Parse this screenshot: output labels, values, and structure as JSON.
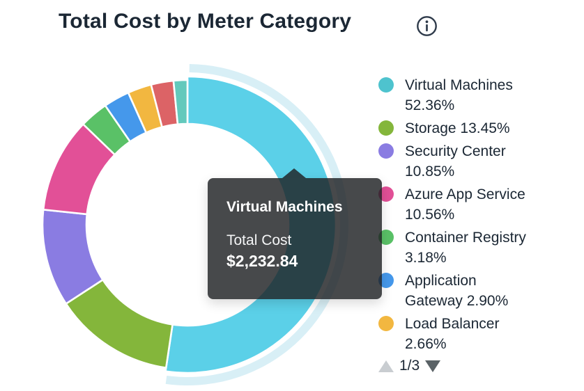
{
  "header": {
    "title": "Total Cost by Meter Category"
  },
  "chart_data": {
    "type": "donut",
    "title": "Total Cost by Meter Category",
    "legend_position": "right",
    "hovered_segment": "Virtual Machines",
    "segment_border_color": "#ffffff",
    "highlight_halo_color": "#d8eff6",
    "segments": [
      {
        "label": "Virtual Machines",
        "pct": 52.36,
        "pct_label": "52.36%",
        "color": "#5bd0e8",
        "dot_color": "#4ec3ce",
        "hovered": true,
        "legend_lines": [
          "Virtual Machines",
          "52.36%"
        ]
      },
      {
        "label": "Storage",
        "pct": 13.45,
        "pct_label": "13.45%",
        "color": "#84b63b",
        "legend_lines": [
          "Storage 13.45%"
        ]
      },
      {
        "label": "Security Center",
        "pct": 10.85,
        "pct_label": "10.85%",
        "color": "#8a7ce2",
        "legend_lines": [
          "Security Center",
          "10.85%"
        ]
      },
      {
        "label": "Azure App Service",
        "pct": 10.56,
        "pct_label": "10.56%",
        "color": "#e25097",
        "legend_lines": [
          "Azure App Service",
          "10.56%"
        ]
      },
      {
        "label": "Container Registry",
        "pct": 3.18,
        "pct_label": "3.18%",
        "color": "#5ac167",
        "legend_lines": [
          "Container Registry",
          "3.18%"
        ]
      },
      {
        "label": "Application Gateway",
        "pct": 2.9,
        "pct_label": "2.90%",
        "color": "#4598eb",
        "legend_lines": [
          "Application",
          "Gateway 2.90%"
        ]
      },
      {
        "label": "Load Balancer",
        "pct": 2.66,
        "pct_label": "2.66%",
        "color": "#f2b740",
        "legend_lines": [
          "Load Balancer",
          "2.66%"
        ]
      },
      {
        "label": "",
        "pct": 2.5,
        "color": "#dc6366"
      },
      {
        "label": "",
        "pct": 1.54,
        "color": "#63c9bc"
      }
    ]
  },
  "tooltip": {
    "title": "Virtual Machines",
    "label": "Total Cost",
    "value": "$2,232.84"
  },
  "pagination": {
    "current": "1/3"
  }
}
